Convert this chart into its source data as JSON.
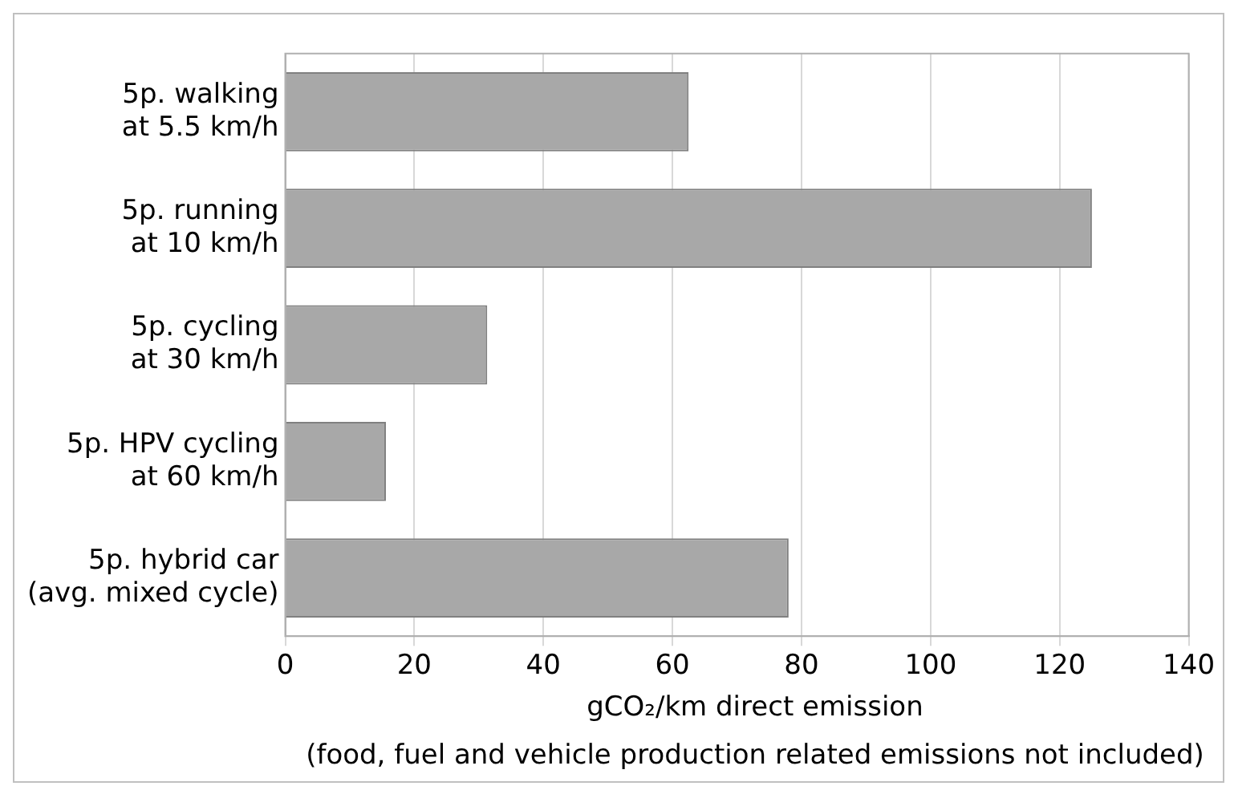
{
  "chart_data": {
    "type": "bar",
    "orientation": "horizontal",
    "categories": [
      "5p. walking\nat 5.5 km/h",
      "5p. running\nat 10 km/h",
      "5p. cycling\nat 30 km/h",
      "5p. HPV cycling\nat 60 km/h",
      "5p. hybrid car\n(avg. mixed cycle)"
    ],
    "values": [
      62.5,
      125,
      31.3,
      15.6,
      78
    ],
    "color": "#a8a8a8",
    "xlim": [
      0,
      140
    ],
    "xticks": [
      0,
      20,
      40,
      60,
      80,
      100,
      120,
      140
    ],
    "xlabel": "gCO₂/km direct emission",
    "annotations": [
      "(food, fuel and vehicle production related emissions not included)"
    ],
    "grid": "x",
    "legend": false
  }
}
